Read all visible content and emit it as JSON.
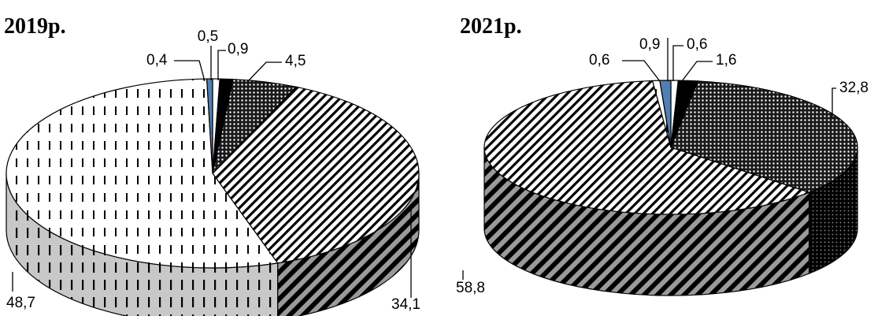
{
  "chart_data": [
    {
      "type": "pie",
      "title": "2019р.",
      "slices": [
        {
          "label": "0,5",
          "value": 0.5
        },
        {
          "label": "0,9",
          "value": 0.9
        },
        {
          "label": "4,5",
          "value": 4.5
        },
        {
          "label": "34,1",
          "value": 34.1
        },
        {
          "label": "48,7",
          "value": 48.7
        },
        {
          "label": "0,4",
          "value": 0.4
        }
      ]
    },
    {
      "type": "pie",
      "title": "2021р.",
      "slices": [
        {
          "label": "0,6",
          "value": 0.6
        },
        {
          "label": "1,6",
          "value": 1.6
        },
        {
          "label": "32,8",
          "value": 32.8
        },
        {
          "label": "58,8",
          "value": 58.8
        },
        {
          "label": "0,6",
          "value": 0.6
        },
        {
          "label": "0,9",
          "value": 0.9
        }
      ]
    }
  ]
}
